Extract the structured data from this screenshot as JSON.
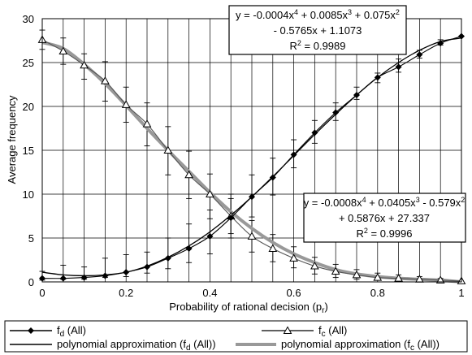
{
  "chart_data": {
    "type": "line",
    "xlabel": "Probability of rational decision (p",
    "xlabel_sub": "r",
    "xlabel_end": ")",
    "ylabel": "Average frequency",
    "xlim": [
      0,
      1
    ],
    "ylim": [
      0,
      30
    ],
    "x_ticks": [
      "0",
      "0.2",
      "0.4",
      "0.6",
      "0.8",
      "1"
    ],
    "y_ticks": [
      "0",
      "5",
      "10",
      "15",
      "20",
      "25",
      "30"
    ],
    "grid": true,
    "x": [
      0,
      0.05,
      0.1,
      0.15,
      0.2,
      0.25,
      0.3,
      0.35,
      0.4,
      0.45,
      0.5,
      0.55,
      0.6,
      0.65,
      0.7,
      0.75,
      0.8,
      0.85,
      0.9,
      0.95,
      1.0
    ],
    "series": [
      {
        "name": "f_d (All)",
        "label_main": "f",
        "label_sub": "d",
        "label_end": " (All)",
        "marker": "diamond",
        "color": "#000000",
        "values": [
          0.4,
          0.4,
          0.5,
          0.7,
          1.1,
          1.7,
          2.7,
          3.8,
          5.2,
          7.3,
          9.7,
          11.9,
          14.5,
          17.0,
          19.3,
          21.3,
          23.3,
          24.5,
          25.9,
          27.2,
          28.0
        ],
        "err_low": [
          0.2,
          0.1,
          0.2,
          0.2,
          0.5,
          0.7,
          1.2,
          1.6,
          2.0,
          2.3,
          2.3,
          2.0,
          1.5,
          1.2,
          0.9,
          0.5,
          0.6,
          0.6,
          0.4,
          0.2,
          0
        ],
        "err_high": [
          0.8,
          1.5,
          1.2,
          2.0,
          2.0,
          1.7,
          2.3,
          2.8,
          3.0,
          2.7,
          2.5,
          2.2,
          1.7,
          1.4,
          1.1,
          0.9,
          0.5,
          0.9,
          0.5,
          0.4,
          0
        ]
      },
      {
        "name": "f_c (All)",
        "label_main": "f",
        "label_sub": "c",
        "label_end": " (All)",
        "marker": "triangle",
        "color": "#000000",
        "values": [
          27.6,
          26.3,
          24.7,
          22.9,
          20.2,
          18.0,
          15.0,
          12.2,
          10.0,
          7.5,
          5.2,
          3.8,
          2.7,
          1.8,
          1.2,
          0.8,
          0.5,
          0.4,
          0.3,
          0.2,
          0.1
        ],
        "err_low": [
          1.1,
          1.5,
          1.6,
          2.3,
          2.0,
          2.5,
          2.8,
          2.7,
          2.8,
          2.0,
          1.8,
          1.5,
          1.1,
          0.9,
          0.7,
          0.5,
          0.3,
          0.2,
          0.2,
          0.1,
          0
        ],
        "err_high": [
          1.1,
          1.5,
          1.3,
          2.2,
          2.0,
          2.4,
          2.7,
          2.7,
          2.3,
          2.0,
          1.8,
          1.6,
          1.3,
          1.0,
          0.8,
          0.6,
          0.5,
          0.4,
          0.3,
          0.2,
          0
        ]
      },
      {
        "name": "polynomial approximation (f_d (All))",
        "label_main": "polynomial approximation (f",
        "label_sub": "d",
        "label_end": " (All))",
        "style": "thin-line",
        "color": "#000000",
        "values": [
          1.1,
          0.8,
          0.7,
          0.8,
          1.1,
          1.8,
          2.8,
          4.1,
          5.7,
          7.6,
          9.7,
          12.0,
          14.4,
          16.8,
          19.1,
          21.3,
          23.3,
          25.0,
          26.4,
          27.4,
          27.8
        ]
      },
      {
        "name": "polynomial approximation (f_c (All))",
        "label_main": "polynomial approximation (f",
        "label_sub": "c",
        "label_end": " (All))",
        "style": "thick-line",
        "color": "#999999",
        "values": [
          27.3,
          26.6,
          24.8,
          22.6,
          20.1,
          17.5,
          15.0,
          12.6,
          10.2,
          8.0,
          6.1,
          4.5,
          3.2,
          2.2,
          1.4,
          0.9,
          0.6,
          0.4,
          0.3,
          0.2,
          0.0
        ]
      }
    ],
    "annotations": [
      {
        "lines": [
          [
            "y = -0.0004x",
            "4",
            " + 0.0085x",
            "3",
            " + 0.075x",
            "2"
          ],
          [
            "- 0.5765x + 1.1073"
          ],
          [
            "R",
            "2",
            " = 0.9989"
          ]
        ]
      },
      {
        "lines": [
          [
            "y = -0.0008x",
            "4",
            " + 0.0405x",
            "3",
            " - 0.579x",
            "2"
          ],
          [
            "+ 0.5876x + 27.337"
          ],
          [
            "R",
            "2",
            " = 0.9996"
          ]
        ]
      }
    ],
    "legend_position": "bottom"
  }
}
